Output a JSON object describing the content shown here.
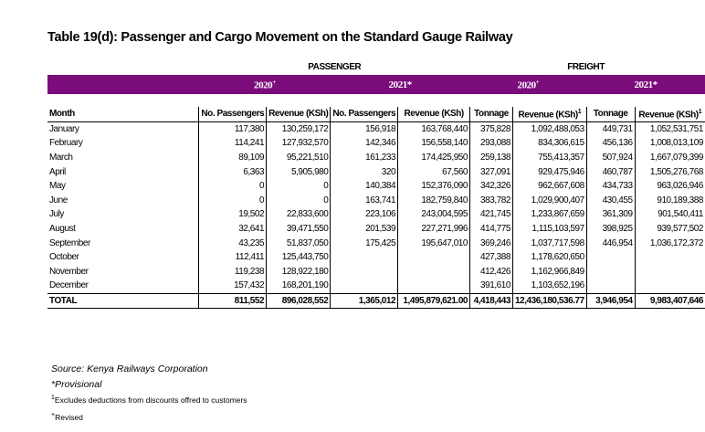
{
  "title": "Table 19(d): Passenger and Cargo Movement on the Standard Gauge Railway",
  "groups": [
    "PASSENGER",
    "FREIGHT"
  ],
  "years": [
    {
      "text": "2020",
      "sup": "+"
    },
    {
      "text": "2021*"
    },
    {
      "text": "2020",
      "sup": "+"
    },
    {
      "text": "2021*"
    }
  ],
  "columns": [
    {
      "text": "Month"
    },
    {
      "text": "No. Passengers"
    },
    {
      "text": "Revenue (KSh)"
    },
    {
      "text": "No. Passengers"
    },
    {
      "text": "Revenue (KSh)"
    },
    {
      "text": "Tonnage"
    },
    {
      "text": "Revenue (KSh)",
      "sup": "1"
    },
    {
      "text": "Tonnage"
    },
    {
      "text": "Revenue (KSh)",
      "sup": "1"
    }
  ],
  "rows": [
    [
      "January",
      "117,380",
      "130,259,172",
      "156,918",
      "163,768,440",
      "375,828",
      "1,092,488,053",
      "449,731",
      "1,052,531,751"
    ],
    [
      "February",
      "114,241",
      "127,932,570",
      "142,346",
      "156,558,140",
      "293,088",
      "834,306,615",
      "456,136",
      "1,008,013,109"
    ],
    [
      "March",
      "89,109",
      "95,221,510",
      "161,233",
      "174,425,950",
      "259,138",
      "755,413,357",
      "507,924",
      "1,667,079,399"
    ],
    [
      "April",
      "6,363",
      "5,905,980",
      "320",
      "67,560",
      "327,091",
      "929,475,946",
      "460,787",
      "1,505,276,768"
    ],
    [
      "May",
      "0",
      "0",
      "140,384",
      "152,376,090",
      "342,326",
      "962,667,608",
      "434,733",
      "963,026,946"
    ],
    [
      "June",
      "0",
      "0",
      "163,741",
      "182,759,840",
      "383,782",
      "1,029,900,407",
      "430,455",
      "910,189,388"
    ],
    [
      "July",
      "19,502",
      "22,833,600",
      "223,106",
      "243,004,595",
      "421,745",
      "1,233,867,659",
      "361,309",
      "901,540,411"
    ],
    [
      "August",
      "32,641",
      "39,471,550",
      "201,539",
      "227,271,996",
      "414,775",
      "1,115,103,597",
      "398,925",
      "939,577,502"
    ],
    [
      "September",
      "43,235",
      "51,837,050",
      "175,425",
      "195,647,010",
      "369,246",
      "1,037,717,598",
      "446,954",
      "1,036,172,372"
    ],
    [
      "October",
      "112,411",
      "125,443,750",
      null,
      null,
      "427,388",
      "1,178,620,650",
      null,
      null
    ],
    [
      "November",
      "119,238",
      "128,922,180",
      null,
      null,
      "412,426",
      "1,162,966,849",
      null,
      null
    ],
    [
      "December",
      "157,432",
      "168,201,190",
      null,
      null,
      "391,610",
      "1,103,652,196",
      null,
      null
    ],
    [
      "TOTAL",
      "811,552",
      "896,028,552",
      "1,365,012",
      "1,495,879,621.00",
      "4,418,443",
      "12,436,180,536.77",
      "3,946,954",
      "9,983,407,646"
    ]
  ],
  "notes": [
    {
      "text": "Source: Kenya Railways Corporation"
    },
    {
      "text": "*Provisional"
    },
    {
      "sup": "1",
      "text": "Excludes deductions from discounts offred to customers"
    },
    {
      "sup": "+",
      "text": "Revised"
    }
  ]
}
